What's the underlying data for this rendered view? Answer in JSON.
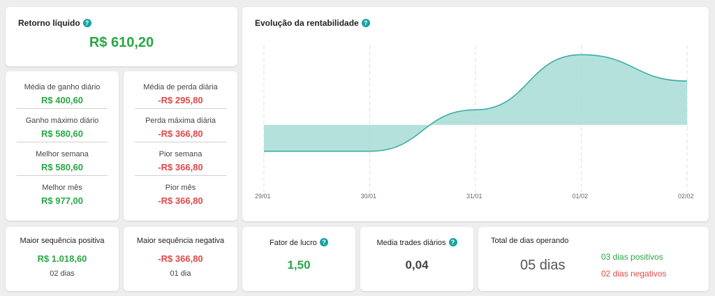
{
  "retorno": {
    "title": "Retorno líquido",
    "value": "R$ 610,20"
  },
  "gains": [
    {
      "label": "Média de ganho diário",
      "value": "R$ 400,60"
    },
    {
      "label": "Ganho máximo diário",
      "value": "R$ 580,60"
    },
    {
      "label": "Melhor semana",
      "value": "R$ 580,60"
    },
    {
      "label": "Melhor mês",
      "value": "R$ 977,00"
    }
  ],
  "losses": [
    {
      "label": "Média de perda diária",
      "value": "-R$ 295,80"
    },
    {
      "label": "Perda máxima diária",
      "value": "-R$ 366,80"
    },
    {
      "label": "Pior semana",
      "value": "-R$ 366,80"
    },
    {
      "label": "Pior mês",
      "value": "-R$ 366,80"
    }
  ],
  "evolucao": {
    "title": "Evolução da rentabilidade"
  },
  "chart_data": {
    "type": "area",
    "title": "Evolução da rentabilidade",
    "x": [
      "29/01",
      "30/01",
      "31/01",
      "01/02",
      "02/02"
    ],
    "values": [
      -366.8,
      -366.8,
      210,
      977,
      610.2
    ],
    "grid": "vertical dashed",
    "legend": "none",
    "color": "#3aaea3"
  },
  "seq_pos": {
    "title": "Maior sequência positiva",
    "value": "R$ 1.018,60",
    "days": "02 dias"
  },
  "seq_neg": {
    "title": "Maior sequência negativa",
    "value": "-R$ 366,80",
    "days": "01 dia"
  },
  "fator": {
    "title": "Fator de lucro",
    "value": "1,50"
  },
  "media_trades": {
    "title": "Media trades diários",
    "value": "0,04"
  },
  "dias": {
    "title": "Total de dias operando",
    "total": "05 dias",
    "positivos": "03 dias positivos",
    "negativos": "02 dias negativos"
  },
  "colors": {
    "green": "#28a745",
    "red": "#e04848",
    "accent": "#17a2a2",
    "area": "#a8dcd6",
    "line": "#3aaea3"
  }
}
